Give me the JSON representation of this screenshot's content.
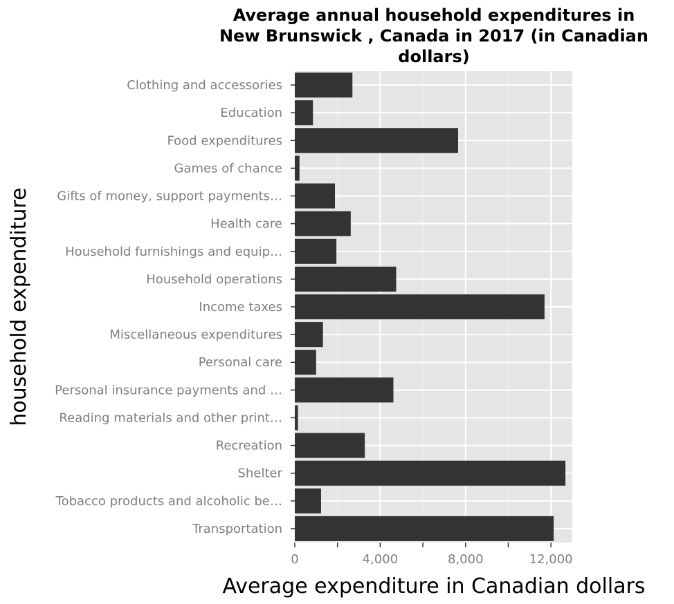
{
  "chart_data": {
    "type": "bar",
    "orientation": "horizontal",
    "title_lines": [
      "Average annual household expenditures in",
      "New Brunswick , Canada in 2017 (in Canadian",
      "dollars)"
    ],
    "xlabel": "Average expenditure in Canadian dollars",
    "ylabel": "household expenditure",
    "xlim": [
      0,
      13000
    ],
    "x_ticks": [
      0,
      4000,
      8000,
      12000
    ],
    "x_tick_labels": [
      "0",
      "4,000",
      "8,000",
      "12,000"
    ],
    "grid": true,
    "categories": [
      "Clothing and accessories",
      "Education",
      "Food expenditures",
      "Games of chance",
      "Gifts of money, support payments…",
      "Health care",
      "Household furnishings and equip…",
      "Household operations",
      "Income taxes",
      "Miscellaneous expenditures",
      "Personal care",
      "Personal insurance payments and …",
      "Reading materials and other print…",
      "Recreation",
      "Shelter",
      "Tobacco products and alcoholic be…",
      "Transportation"
    ],
    "values": [
      2700,
      850,
      7650,
      220,
      1880,
      2620,
      1950,
      4750,
      11700,
      1320,
      1000,
      4620,
      150,
      3280,
      12680,
      1230,
      12130
    ],
    "colors": {
      "bar": "#333333",
      "panel": "#e5e5e5",
      "grid_major": "#ffffff",
      "grid_minor": "#f2f2f2",
      "tick_text": "#7f7f7f"
    }
  }
}
